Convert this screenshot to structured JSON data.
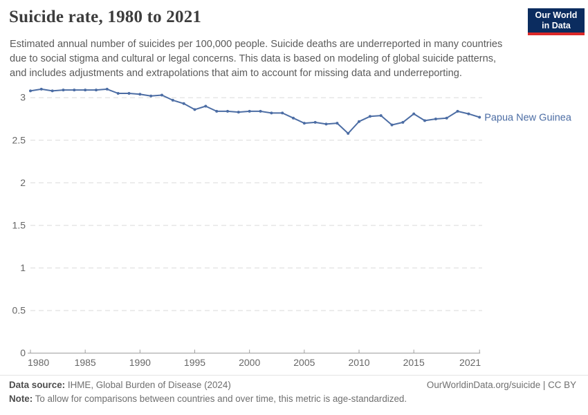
{
  "header": {
    "title": "Suicide rate, 1980 to 2021",
    "subtitle_lines": [
      "Estimated annual number of suicides per 100,000 people. Suicide deaths are underreported in many countries",
      "due to social stigma and cultural or legal concerns. This data is based on modeling of global suicide patterns,",
      "and includes adjustments and extrapolations that aim to account for missing data and underreporting."
    ],
    "logo": {
      "line1": "Our World",
      "line2": "in Data"
    }
  },
  "chart_data": {
    "type": "line",
    "title": "Suicide rate, 1980 to 2021",
    "unit": "suicides per 100,000 people",
    "x": [
      1980,
      1981,
      1982,
      1983,
      1984,
      1985,
      1986,
      1987,
      1988,
      1989,
      1990,
      1991,
      1992,
      1993,
      1994,
      1995,
      1996,
      1997,
      1998,
      1999,
      2000,
      2001,
      2002,
      2003,
      2004,
      2005,
      2006,
      2007,
      2008,
      2009,
      2010,
      2011,
      2012,
      2013,
      2014,
      2015,
      2016,
      2017,
      2018,
      2019,
      2020,
      2021
    ],
    "series": [
      {
        "name": "Papua New Guinea",
        "color": "#4c6da4",
        "values": [
          3.08,
          3.1,
          3.08,
          3.09,
          3.09,
          3.09,
          3.09,
          3.1,
          3.05,
          3.05,
          3.04,
          3.02,
          3.03,
          2.97,
          2.93,
          2.86,
          2.9,
          2.84,
          2.84,
          2.83,
          2.84,
          2.84,
          2.82,
          2.82,
          2.76,
          2.7,
          2.71,
          2.69,
          2.7,
          2.58,
          2.72,
          2.78,
          2.79,
          2.68,
          2.71,
          2.81,
          2.73,
          2.75,
          2.76,
          2.84,
          2.81,
          2.77
        ]
      }
    ],
    "x_ticks": [
      1980,
      1985,
      1990,
      1995,
      2000,
      2005,
      2010,
      2015,
      2021
    ],
    "y_ticks": [
      0,
      0.5,
      1,
      1.5,
      2,
      2.5,
      3
    ],
    "xlim": [
      1980,
      2021
    ],
    "ylim": [
      0,
      3.17
    ],
    "grid": "horizontal-dashed",
    "legend": "end-of-line-label",
    "axis_color": "#9e9e9e",
    "grid_color": "#dadada",
    "tick_label_color": "#666666"
  },
  "footer": {
    "datasource_label": "Data source:",
    "datasource_text": " IHME, Global Burden of Disease (2024)",
    "link_text": "OurWorldinData.org/suicide | CC BY",
    "note_label": "Note:",
    "note_text": " To allow for comparisons between countries and over time, this metric is age-standardized."
  }
}
